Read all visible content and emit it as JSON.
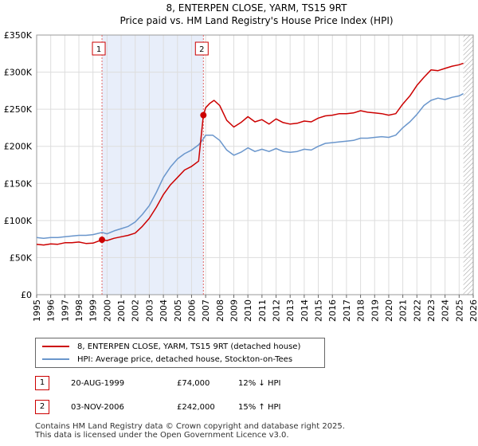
{
  "chart_data": {
    "type": "line",
    "title": "8, ENTERPEN CLOSE, YARM, TS15 9RT",
    "subtitle": "Price paid vs. HM Land Registry's House Price Index (HPI)",
    "xlim": [
      1995,
      2026
    ],
    "ylim": [
      0,
      350000
    ],
    "x_ticks": [
      1995,
      1996,
      1997,
      1998,
      1999,
      2000,
      2001,
      2002,
      2003,
      2004,
      2005,
      2006,
      2007,
      2008,
      2009,
      2010,
      2011,
      2012,
      2013,
      2014,
      2015,
      2016,
      2017,
      2018,
      2019,
      2020,
      2021,
      2022,
      2023,
      2024,
      2025,
      2026
    ],
    "y_ticks": [
      {
        "value": 0,
        "label": "£0"
      },
      {
        "value": 50000,
        "label": "£50K"
      },
      {
        "value": 100000,
        "label": "£100K"
      },
      {
        "value": 150000,
        "label": "£150K"
      },
      {
        "value": 200000,
        "label": "£200K"
      },
      {
        "value": 250000,
        "label": "£250K"
      },
      {
        "value": 300000,
        "label": "£300K"
      },
      {
        "value": 350000,
        "label": "£350K"
      }
    ],
    "shaded_period": [
      1999.64,
      2006.84
    ],
    "data_end_hatch_from": 2025.3,
    "series": [
      {
        "name": "8, ENTERPEN CLOSE, YARM, TS15 9RT (detached house)",
        "color": "#cc0000",
        "x": [
          1995,
          1995.5,
          1996,
          1996.5,
          1997,
          1997.5,
          1998,
          1998.5,
          1999,
          1999.64,
          2000,
          2000.5,
          2001,
          2001.5,
          2002,
          2002.5,
          2003,
          2003.5,
          2004,
          2004.5,
          2005,
          2005.5,
          2006,
          2006.5,
          2006.84,
          2007,
          2007.3,
          2007.6,
          2008,
          2008.5,
          2009,
          2009.5,
          2010,
          2010.5,
          2011,
          2011.5,
          2012,
          2012.5,
          2013,
          2013.5,
          2014,
          2014.5,
          2015,
          2015.5,
          2016,
          2016.5,
          2017,
          2017.5,
          2018,
          2018.5,
          2019,
          2019.5,
          2020,
          2020.5,
          2021,
          2021.5,
          2022,
          2022.5,
          2023,
          2023.5,
          2024,
          2024.5,
          2025,
          2025.3
        ],
        "y": [
          68000,
          67000,
          68500,
          68000,
          70000,
          70000,
          71000,
          69000,
          69500,
          74000,
          73000,
          76000,
          78000,
          80000,
          83000,
          92000,
          103000,
          118000,
          135000,
          148000,
          158000,
          168000,
          173000,
          180000,
          242000,
          252000,
          258000,
          262000,
          255000,
          235000,
          226000,
          232000,
          240000,
          233000,
          236000,
          230000,
          237000,
          232000,
          230000,
          231000,
          234000,
          233000,
          238000,
          241000,
          242000,
          244000,
          244000,
          245000,
          248000,
          246000,
          245000,
          244000,
          242000,
          244000,
          257000,
          268000,
          282000,
          293000,
          303000,
          302000,
          305000,
          308000,
          310000,
          312000
        ]
      },
      {
        "name": "HPI: Average price, detached house, Stockton-on-Tees",
        "color": "#6a96cc",
        "x": [
          1995,
          1995.5,
          1996,
          1996.5,
          1997,
          1997.5,
          1998,
          1998.5,
          1999,
          1999.64,
          2000,
          2000.5,
          2001,
          2001.5,
          2002,
          2002.5,
          2003,
          2003.5,
          2004,
          2004.5,
          2005,
          2005.5,
          2006,
          2006.5,
          2006.84,
          2007,
          2007.5,
          2008,
          2008.5,
          2009,
          2009.5,
          2010,
          2010.5,
          2011,
          2011.5,
          2012,
          2012.5,
          2013,
          2013.5,
          2014,
          2014.5,
          2015,
          2015.5,
          2016,
          2016.5,
          2017,
          2017.5,
          2018,
          2018.5,
          2019,
          2019.5,
          2020,
          2020.5,
          2021,
          2021.5,
          2022,
          2022.5,
          2023,
          2023.5,
          2024,
          2024.5,
          2025,
          2025.3
        ],
        "y": [
          77000,
          76000,
          77000,
          77000,
          78000,
          79000,
          80000,
          80000,
          81000,
          84000,
          82000,
          86000,
          89000,
          92000,
          98000,
          108000,
          120000,
          138000,
          158000,
          172000,
          183000,
          190000,
          195000,
          202000,
          210000,
          215000,
          215000,
          208000,
          195000,
          188000,
          192000,
          198000,
          193000,
          196000,
          193000,
          197000,
          193000,
          192000,
          193000,
          196000,
          195000,
          200000,
          204000,
          205000,
          206000,
          207000,
          208000,
          211000,
          211000,
          212000,
          213000,
          212000,
          215000,
          225000,
          233000,
          243000,
          255000,
          262000,
          265000,
          263000,
          266000,
          268000,
          271000
        ]
      }
    ],
    "sales": [
      {
        "label": "1",
        "x": 1999.64,
        "y": 74000,
        "date": "20-AUG-1999",
        "price": "£74,000",
        "hpi": "12% ↓ HPI"
      },
      {
        "label": "2",
        "x": 2006.84,
        "y": 242000,
        "date": "03-NOV-2006",
        "price": "£242,000",
        "hpi": "15% ↑ HPI"
      }
    ],
    "footer_line1": "Contains HM Land Registry data © Crown copyright and database right 2025.",
    "footer_line2": "This data is licensed under the Open Government Licence v3.0."
  }
}
